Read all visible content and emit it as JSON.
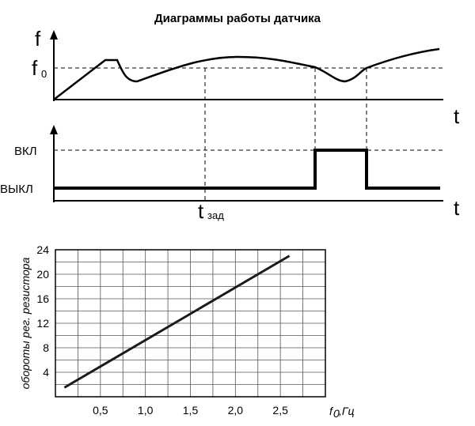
{
  "timing": {
    "title": "Диаграммы работы датчика",
    "f_axis": "f",
    "f0_main": "f",
    "f0_sub": "0",
    "t_axis_top": "t",
    "t_axis_bottom": "t",
    "on_label": "ВКЛ",
    "off_label": "ВЫКЛ",
    "tzad_main": "t",
    "tzad_sub": "зад"
  },
  "chart_data": {
    "type": "line",
    "xlabel_main": "f",
    "xlabel_sub": "0",
    "xlabel_unit": ",Гц",
    "ylabel": "обороты рег. резистора",
    "x_ticks": [
      "0,5",
      "1,0",
      "1,5",
      "2,0",
      "2,5"
    ],
    "y_ticks": [
      "4",
      "8",
      "12",
      "16",
      "20",
      "24"
    ],
    "xlim": [
      0,
      3.0
    ],
    "ylim": [
      0,
      24
    ],
    "grid": true,
    "series": [
      {
        "x": [
          0.1,
          2.6
        ],
        "y": [
          1.5,
          23.0
        ]
      }
    ]
  }
}
